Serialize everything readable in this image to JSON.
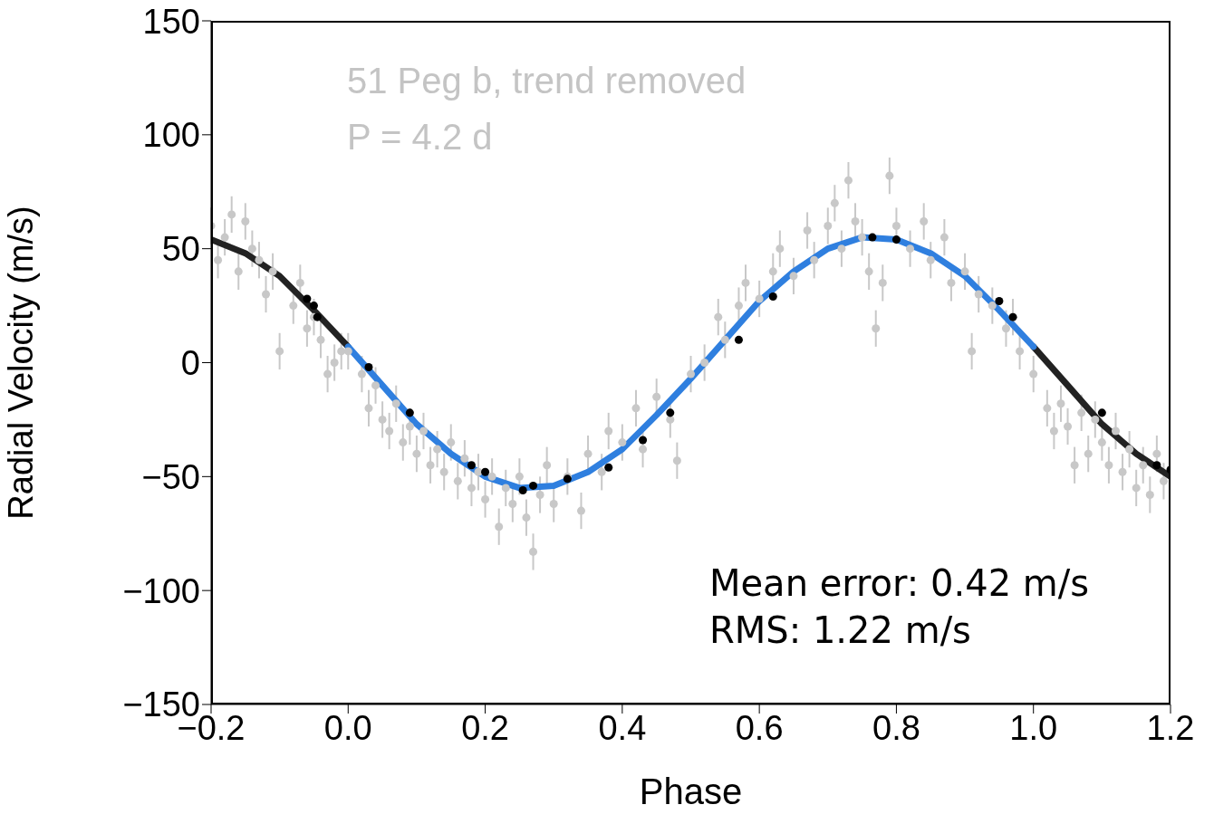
{
  "chart_data": {
    "type": "scatter",
    "title": "51 Peg b, trend removed",
    "subtitle": "P = 4.2 d",
    "xlabel": "Phase",
    "ylabel": "Radial Velocity  (m/s)",
    "annotations": [
      "Mean error: 0.42 m/s",
      "RMS: 1.22 m/s"
    ],
    "xlim": [
      -0.2,
      1.2
    ],
    "xticks": [
      {
        "value": -0.2,
        "label": "−0.2"
      },
      {
        "value": 0,
        "label": "0.0"
      },
      {
        "value": 0.2,
        "label": "0.2"
      },
      {
        "value": 0.4,
        "label": "0.4"
      },
      {
        "value": 0.6,
        "label": "0.6"
      },
      {
        "value": 0.8,
        "label": "0.8"
      },
      {
        "value": 1,
        "label": "1.0"
      },
      {
        "value": 1.2,
        "label": "1.2"
      }
    ],
    "ylim": [
      -150,
      150
    ],
    "yticks": [
      {
        "value": -150,
        "label": "−150"
      },
      {
        "value": -100,
        "label": "−100"
      },
      {
        "value": -50,
        "label": "−50"
      },
      0,
      50,
      100,
      150
    ],
    "grid": false,
    "legend": false,
    "series": [
      {
        "marker": "circle",
        "color": "#c8c8c8",
        "x": [
          -0.2,
          -0.19,
          -0.18,
          -0.17,
          -0.16,
          -0.15,
          -0.14,
          -0.13,
          -0.12,
          -0.11,
          -0.1,
          -0.08,
          -0.07,
          -0.06,
          -0.05,
          -0.04,
          -0.03,
          -0.02,
          -0.01,
          0.0,
          0.02,
          0.03,
          0.04,
          0.05,
          0.06,
          0.07,
          0.08,
          0.09,
          0.1,
          0.11,
          0.12,
          0.13,
          0.14,
          0.15,
          0.16,
          0.17,
          0.18,
          0.19,
          0.2,
          0.21,
          0.22,
          0.23,
          0.24,
          0.25,
          0.26,
          0.27,
          0.28,
          0.29,
          0.3,
          0.32,
          0.34,
          0.35,
          0.37,
          0.38,
          0.4,
          0.42,
          0.43,
          0.45,
          0.47,
          0.48,
          0.5,
          0.52,
          0.54,
          0.55,
          0.57,
          0.58,
          0.6,
          0.62,
          0.63,
          0.65,
          0.67,
          0.68,
          0.7,
          0.71,
          0.72,
          0.73,
          0.74,
          0.75,
          0.76,
          0.77,
          0.78,
          0.79,
          0.8,
          0.82,
          0.84,
          0.85,
          0.87,
          0.88,
          0.9,
          0.91,
          0.92,
          0.94,
          0.96,
          0.97,
          0.98,
          1.0,
          1.02,
          1.03,
          1.04,
          1.05,
          1.06,
          1.07,
          1.08,
          1.09,
          1.1,
          1.11,
          1.12,
          1.13,
          1.14,
          1.15,
          1.16,
          1.17,
          1.18,
          1.19
        ],
        "values": [
          60,
          45,
          55,
          65,
          40,
          62,
          50,
          45,
          30,
          40,
          5,
          25,
          35,
          15,
          20,
          10,
          -5,
          0,
          5,
          5,
          -5,
          -20,
          -10,
          -25,
          -30,
          -18,
          -35,
          -28,
          -40,
          -30,
          -45,
          -38,
          -48,
          -35,
          -52,
          -42,
          -55,
          -48,
          -60,
          -50,
          -72,
          -55,
          -62,
          -50,
          -68,
          -83,
          -58,
          -45,
          -62,
          -50,
          -65,
          -40,
          -48,
          -30,
          -35,
          -20,
          -38,
          -15,
          -25,
          -43,
          -5,
          0,
          20,
          10,
          25,
          35,
          28,
          40,
          50,
          38,
          58,
          45,
          60,
          70,
          50,
          80,
          62,
          55,
          40,
          15,
          35,
          82,
          60,
          50,
          62,
          45,
          55,
          35,
          40,
          5,
          30,
          25,
          15,
          20,
          5,
          -5,
          -20,
          -30,
          -18,
          -28,
          -45,
          -22,
          -40,
          -25,
          -35,
          -45,
          -30,
          -48,
          -38,
          -55,
          -45,
          -58,
          -40,
          -52
        ],
        "errors": [
          8,
          8,
          8,
          8,
          8,
          8,
          8,
          8,
          8,
          8,
          8,
          8,
          8,
          8,
          8,
          8,
          8,
          8,
          8,
          8,
          8,
          8,
          8,
          8,
          8,
          8,
          8,
          8,
          8,
          8,
          8,
          8,
          8,
          8,
          8,
          8,
          8,
          8,
          8,
          8,
          8,
          8,
          8,
          8,
          8,
          8,
          8,
          8,
          8,
          8,
          8,
          8,
          8,
          8,
          8,
          8,
          8,
          8,
          8,
          8,
          8,
          8,
          8,
          8,
          8,
          8,
          8,
          8,
          8,
          8,
          8,
          8,
          8,
          8,
          8,
          8,
          8,
          8,
          8,
          8,
          8,
          8,
          8,
          8,
          8,
          8,
          8,
          8,
          8,
          8,
          8,
          8,
          8,
          8,
          8,
          8,
          8,
          8,
          8,
          8,
          8,
          8,
          8,
          8,
          8,
          8,
          8,
          8,
          8,
          8,
          8,
          8,
          8,
          8
        ]
      },
      {
        "type": "line",
        "color": "#222222",
        "x": [
          -0.2,
          -0.15,
          -0.1,
          -0.05,
          0,
          0.02,
          1.0,
          1.05,
          1.1,
          1.15,
          1.2
        ],
        "values": [
          54,
          48,
          38,
          23,
          7,
          null,
          7,
          -10,
          -27,
          -40,
          -50
        ]
      },
      {
        "type": "line",
        "color": "#2f7fdf",
        "x": [
          0,
          0.05,
          0.1,
          0.15,
          0.2,
          0.25,
          0.3,
          0.35,
          0.4,
          0.45,
          0.5,
          0.55,
          0.6,
          0.65,
          0.7,
          0.75,
          0.8,
          0.85,
          0.9,
          0.95,
          1.0
        ],
        "values": [
          7,
          -10,
          -27,
          -40,
          -50,
          -55,
          -54,
          -48,
          -38,
          -23,
          -7,
          10,
          27,
          40,
          50,
          55,
          54,
          48,
          38,
          23,
          7
        ]
      },
      {
        "marker": "circle",
        "color": "#000000",
        "x": [
          -0.06,
          -0.05,
          -0.045,
          0.03,
          0.09,
          0.18,
          0.2,
          0.255,
          0.27,
          0.32,
          0.38,
          0.43,
          0.47,
          0.57,
          0.62,
          0.765,
          0.8,
          0.95,
          0.97,
          1.1,
          1.18,
          1.2
        ],
        "values": [
          28,
          25,
          20,
          -2,
          -22,
          -45,
          -48,
          -56,
          -54,
          -51,
          -46,
          -34,
          -22,
          10,
          29,
          55,
          54,
          27,
          20,
          -22,
          -45,
          -47
        ]
      }
    ]
  }
}
